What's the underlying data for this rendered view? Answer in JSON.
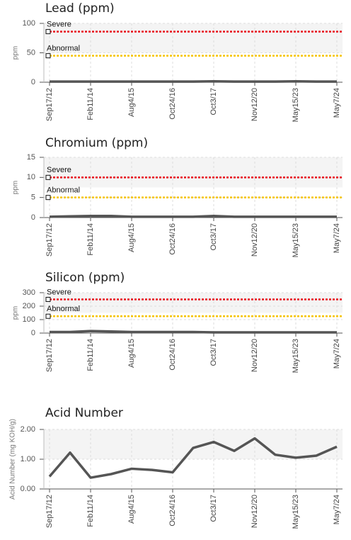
{
  "chart_data": [
    {
      "type": "line",
      "title": "Lead (ppm)",
      "y_label": "ppm",
      "categories": [
        "Sep17/12",
        null,
        "Feb11/14",
        null,
        "Aug4/15",
        null,
        "Oct24/16",
        null,
        "Oct3/17",
        null,
        "Nov12/20",
        null,
        "May15/23",
        null,
        "May7/24"
      ],
      "series": [
        {
          "name": "Lead",
          "color": "#555555",
          "values": [
            1,
            1,
            1,
            1,
            1,
            1,
            1,
            1,
            1.5,
            1,
            1,
            1,
            1.5,
            1,
            1
          ]
        }
      ],
      "thresholds": [
        {
          "name": "Severe",
          "value": 86,
          "color": "#e8111c"
        },
        {
          "name": "Abnormal",
          "value": 45,
          "color": "#f5c400"
        }
      ],
      "ylim": [
        0,
        100
      ],
      "yticks": [
        0,
        50,
        100
      ],
      "grid": true
    },
    {
      "type": "line",
      "title": "Chromium (ppm)",
      "y_label": "ppm",
      "categories": [
        "Sep17/12",
        null,
        "Feb11/14",
        null,
        "Aug4/15",
        null,
        "Oct24/16",
        null,
        "Oct3/17",
        null,
        "Nov12/20",
        null,
        "May15/23",
        null,
        "May7/24"
      ],
      "series": [
        {
          "name": "Chromium",
          "color": "#555555",
          "values": [
            0.2,
            0.3,
            0.4,
            0.4,
            0.2,
            0.2,
            0.2,
            0.2,
            0.4,
            0.2,
            0.2,
            0.2,
            0.2,
            0.2,
            0.2
          ]
        }
      ],
      "thresholds": [
        {
          "name": "Severe",
          "value": 10,
          "color": "#e8111c"
        },
        {
          "name": "Abnormal",
          "value": 5,
          "color": "#f5c400"
        }
      ],
      "ylim": [
        0,
        15
      ],
      "yticks": [
        0,
        5,
        10,
        15
      ],
      "grid": true
    },
    {
      "type": "line",
      "title": "Silicon (ppm)",
      "y_label": "ppm",
      "categories": [
        "Sep17/12",
        null,
        "Feb11/14",
        null,
        "Aug4/15",
        null,
        "Oct24/16",
        null,
        "Oct3/17",
        null,
        "Nov12/20",
        null,
        "May15/23",
        null,
        "May7/24"
      ],
      "series": [
        {
          "name": "Silicon",
          "color": "#555555",
          "values": [
            8,
            8,
            15,
            12,
            8,
            8,
            8,
            8,
            5,
            5,
            5,
            5,
            5,
            5,
            5
          ]
        }
      ],
      "thresholds": [
        {
          "name": "Severe",
          "value": 250,
          "color": "#e8111c"
        },
        {
          "name": "Abnormal",
          "value": 125,
          "color": "#f5c400"
        }
      ],
      "ylim": [
        0,
        300
      ],
      "yticks": [
        0,
        100,
        200,
        300
      ],
      "grid": true
    },
    {
      "type": "line",
      "title": "Acid Number",
      "y_label": "Acid Number (mg KOH/g)",
      "categories": [
        "Sep17/12",
        null,
        "Feb11/14",
        null,
        "Aug4/15",
        null,
        "Oct24/16",
        null,
        "Oct3/17",
        null,
        "Nov12/20",
        null,
        "May15/23",
        null,
        "May7/24"
      ],
      "series": [
        {
          "name": "Acid Number",
          "color": "#555555",
          "values": [
            0.42,
            1.22,
            0.38,
            0.5,
            0.68,
            0.64,
            0.56,
            1.38,
            1.58,
            1.28,
            1.7,
            1.15,
            1.05,
            1.12,
            1.42
          ]
        }
      ],
      "ylim": [
        0,
        2
      ],
      "yticks": [
        {
          "value": 0,
          "label": "0.00"
        },
        {
          "value": 1,
          "label": "1.00"
        },
        {
          "value": 2,
          "label": "2.00"
        }
      ],
      "grid": true
    }
  ]
}
